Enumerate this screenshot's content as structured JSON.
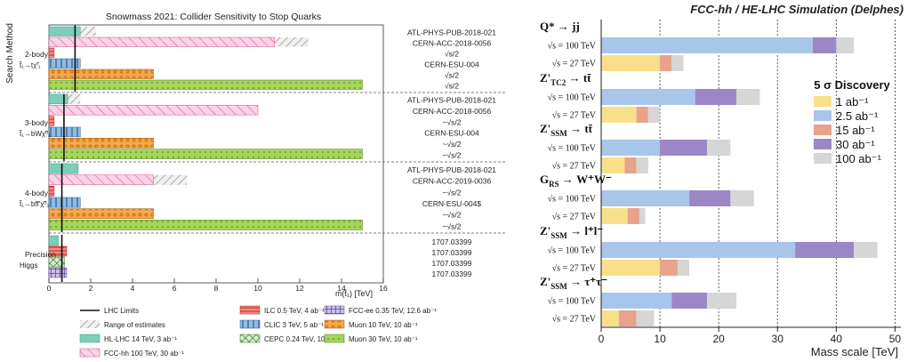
{
  "chart_data": [
    {
      "type": "bar",
      "title": "Snowmass 2021: Collider Sensitivity to Stop Quarks",
      "xlabel": "m(t̃₁) [TeV]",
      "ylabel": "Search Method",
      "xlim": [
        0,
        16
      ],
      "xticks": [
        "0",
        "2",
        "4",
        "6",
        "8",
        "10",
        "12",
        "14",
        "16"
      ],
      "legend": {
        "placement": "bottom",
        "entries": [
          {
            "key": "limit",
            "label": "LHC Limits"
          },
          {
            "key": "range",
            "label": "Range of estimates"
          },
          {
            "key": "hllhc",
            "label": "HL-LHC 14 TeV, 3 ab⁻¹",
            "color": "#7ecdbb"
          },
          {
            "key": "fcchh",
            "label": "FCC-hh 100 TeV, 30 ab⁻¹",
            "color": "#f9b8d6"
          },
          {
            "key": "ilc",
            "label": "ILC 0.5 TeV, 4 ab⁻¹",
            "color": "#ee4444"
          },
          {
            "key": "clic",
            "label": "CLIC 3 TeV, 5 ab⁻¹",
            "color": "#6fa8dc"
          },
          {
            "key": "cepc",
            "label": "CEPC 0.24 TeV, 10 ab⁻¹",
            "color": "#b7e4b0"
          },
          {
            "key": "fccee",
            "label": "FCC-ee 0.35 TeV, 12.6 ab⁻¹",
            "color": "#b4a7d6"
          },
          {
            "key": "muon10",
            "label": "Muon 10 TeV, 10 ab⁻¹",
            "color": "#f6a84a"
          },
          {
            "key": "muon30",
            "label": "Muon 30 TeV, 10 ab⁻¹",
            "color": "#a5d65a"
          }
        ]
      },
      "groups": [
        {
          "label": "2-body",
          "sublabel": "t̃₁→tχ̃ⁱ₁",
          "limit": 1.25,
          "rows": [
            {
              "key": "hllhc",
              "value": 1.5,
              "range": [
                1.5,
                2.25
              ],
              "ref": "ATL-PHYS-PUB-2018-021"
            },
            {
              "key": "fcchh",
              "value": 10.8,
              "range": [
                10.8,
                12.4
              ],
              "ref": "CERN-ACC-2018-0056"
            },
            {
              "key": "ilc",
              "value": 0.25,
              "ref": "√s/2"
            },
            {
              "key": "clic",
              "value": 1.5,
              "ref": "CERN-ESU-004"
            },
            {
              "key": "muon10",
              "value": 5,
              "ref": "√s/2"
            },
            {
              "key": "muon30",
              "value": 15,
              "ref": "√s/2"
            }
          ]
        },
        {
          "label": "3-body",
          "sublabel": "t̃₁→bWχ̃⁰₁",
          "limit": 0.72,
          "rows": [
            {
              "key": "hllhc",
              "value": 0.9,
              "range": [
                0.9,
                1.5
              ],
              "ref": "ATL-PHYS-PUB-2018-021"
            },
            {
              "key": "fcchh",
              "value": 10,
              "range": [
                7.2,
                10
              ],
              "ref": "CERN-ACC-2018-0056"
            },
            {
              "key": "ilc",
              "value": 0.25,
              "ref": "~√s/2"
            },
            {
              "key": "clic",
              "value": 1.5,
              "ref": "CERN-ESU-004"
            },
            {
              "key": "muon10",
              "value": 5,
              "ref": "~√s/2"
            },
            {
              "key": "muon30",
              "value": 15,
              "ref": "~√s/2"
            }
          ]
        },
        {
          "label": "4-body",
          "sublabel": "t̃₁→bff'χ̃⁰₁",
          "limit": 0.62,
          "rows": [
            {
              "key": "hllhc",
              "value": 1.4,
              "range": [
                1.4,
                1.4
              ],
              "ref": "ATL-PHYS-PUB-2018-021"
            },
            {
              "key": "fcchh",
              "value": 5,
              "range": [
                5,
                6.6
              ],
              "ref": "CERN-ACC-2019-0036"
            },
            {
              "key": "ilc",
              "value": 0.25,
              "ref": "~√s/2"
            },
            {
              "key": "clic",
              "value": 1.5,
              "ref": "CERN-ESU-004$"
            },
            {
              "key": "muon10",
              "value": 5,
              "ref": "~√s/2"
            },
            {
              "key": "muon30",
              "value": 15,
              "ref": "~√s/2"
            }
          ]
        },
        {
          "label": "Precision",
          "sublabel": "Higgs",
          "limit": 0.62,
          "rows": [
            {
              "key": "hllhc",
              "value": 0.45,
              "ref": "1707.03399"
            },
            {
              "key": "ilc",
              "value": 0.85,
              "ref": "1707.03399"
            },
            {
              "key": "cepc",
              "value": 0.75,
              "ref": "1707.03399"
            },
            {
              "key": "fccee",
              "value": 0.85,
              "ref": "1707.03399"
            }
          ]
        }
      ]
    },
    {
      "type": "bar",
      "title": "FCC-hh / HE-LHC Simulation (Delphes)",
      "xlabel": "Mass scale [TeV]",
      "xlim": [
        0,
        51
      ],
      "xticks": [
        "0",
        "10",
        "20",
        "30",
        "40",
        "50"
      ],
      "grid": "dashed vertical at 10,20,30,40,50",
      "legend": {
        "placement": "right",
        "title": "5 σ Discovery",
        "entries": [
          {
            "label": "1 ab⁻¹",
            "color": "#f8e08b"
          },
          {
            "label": "2.5 ab⁻¹",
            "color": "#a8c6ea"
          },
          {
            "label": "15 ab⁻¹",
            "color": "#e9a38a"
          },
          {
            "label": "30 ab⁻¹",
            "color": "#9b87c6"
          },
          {
            "label": "100 ab⁻¹",
            "color": "#d6d6d6"
          }
        ]
      },
      "processes": [
        {
          "main": "Q*",
          "sub": "",
          "sup": "",
          "arrow": "→",
          "final": "jj",
          "rows": [
            {
              "energy": "√s = 100 TeV",
              "segments": [
                36,
                40,
                43
              ]
            },
            {
              "energy": "√s = 27 TeV",
              "segments": [
                10,
                12,
                14
              ]
            }
          ]
        },
        {
          "main": "Z'",
          "sub": "TC2",
          "sup": "",
          "arrow": "→",
          "final": "tt̄",
          "rows": [
            {
              "energy": "√s = 100 TeV",
              "segments": [
                16,
                23,
                27
              ]
            },
            {
              "energy": "√s = 27 TeV",
              "segments": [
                6,
                8,
                10
              ]
            }
          ]
        },
        {
          "main": "Z'",
          "sub": "SSM",
          "sup": "",
          "arrow": "→",
          "final": "tt̄",
          "rows": [
            {
              "energy": "√s = 100 TeV",
              "segments": [
                10,
                18,
                22
              ]
            },
            {
              "energy": "√s = 27 TeV",
              "segments": [
                4,
                6,
                8
              ]
            }
          ]
        },
        {
          "main": "G",
          "sub": "RS",
          "sup": "",
          "arrow": "→",
          "final": "W⁺W⁻",
          "rows": [
            {
              "energy": "√s = 100 TeV",
              "segments": [
                15,
                22,
                26
              ]
            },
            {
              "energy": "√s = 27 TeV",
              "segments": [
                4.5,
                6.5,
                7.5
              ]
            }
          ]
        },
        {
          "main": "Z'",
          "sub": "SSM",
          "sup": "",
          "arrow": "→",
          "final": "l⁺l⁻",
          "rows": [
            {
              "energy": "√s = 100 TeV",
              "segments": [
                33,
                43,
                47
              ]
            },
            {
              "energy": "√s = 27 TeV",
              "segments": [
                10,
                13,
                15
              ]
            }
          ]
        },
        {
          "main": "Z'",
          "sub": "SSM",
          "sup": "",
          "arrow": "→",
          "final": "τ⁺τ⁻",
          "rows": [
            {
              "energy": "√s = 100 TeV",
              "segments": [
                12,
                18,
                23
              ]
            },
            {
              "energy": "√s = 27 TeV",
              "segments": [
                3,
                6,
                9
              ]
            }
          ]
        }
      ]
    }
  ]
}
